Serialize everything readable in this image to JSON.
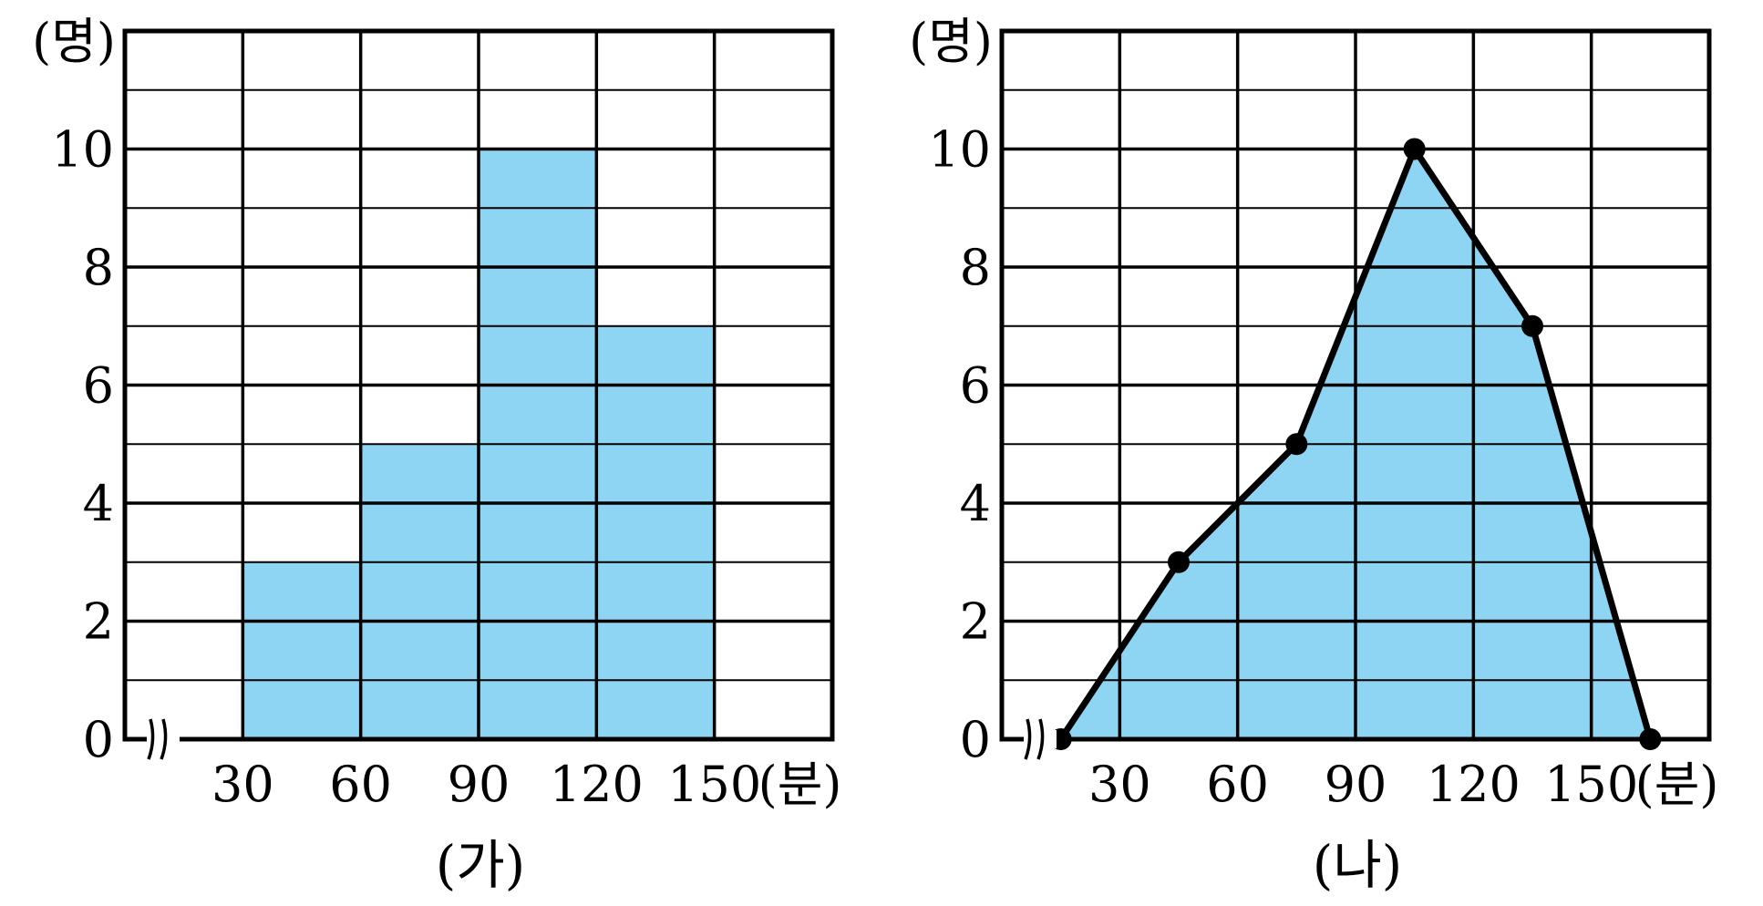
{
  "chart_data": [
    {
      "type": "bar",
      "title": "(가)",
      "ylabel": "(명)",
      "xlabel": "(분)",
      "x_ticks": [
        "30",
        "60",
        "90",
        "120",
        "150"
      ],
      "y_ticks": [
        "0",
        "2",
        "4",
        "6",
        "8",
        "10"
      ],
      "xlim": [
        0,
        180
      ],
      "ylim": [
        0,
        12
      ],
      "bins": [
        [
          30,
          60
        ],
        [
          60,
          90
        ],
        [
          90,
          120
        ],
        [
          120,
          150
        ]
      ],
      "values": [
        3,
        5,
        10,
        7
      ],
      "grid": true,
      "axis_break": true,
      "fill_color": "#8dd5f3"
    },
    {
      "type": "line",
      "title": "(나)",
      "ylabel": "(명)",
      "xlabel": "(분)",
      "x_ticks": [
        "30",
        "60",
        "90",
        "120",
        "150"
      ],
      "y_ticks": [
        "0",
        "2",
        "4",
        "6",
        "8",
        "10"
      ],
      "xlim": [
        0,
        180
      ],
      "ylim": [
        0,
        12
      ],
      "x": [
        15,
        45,
        75,
        105,
        135,
        165
      ],
      "y": [
        0,
        3,
        5,
        10,
        7,
        0
      ],
      "grid": true,
      "axis_break": true,
      "fill_color": "#8dd5f3",
      "line_color": "#000000"
    }
  ]
}
